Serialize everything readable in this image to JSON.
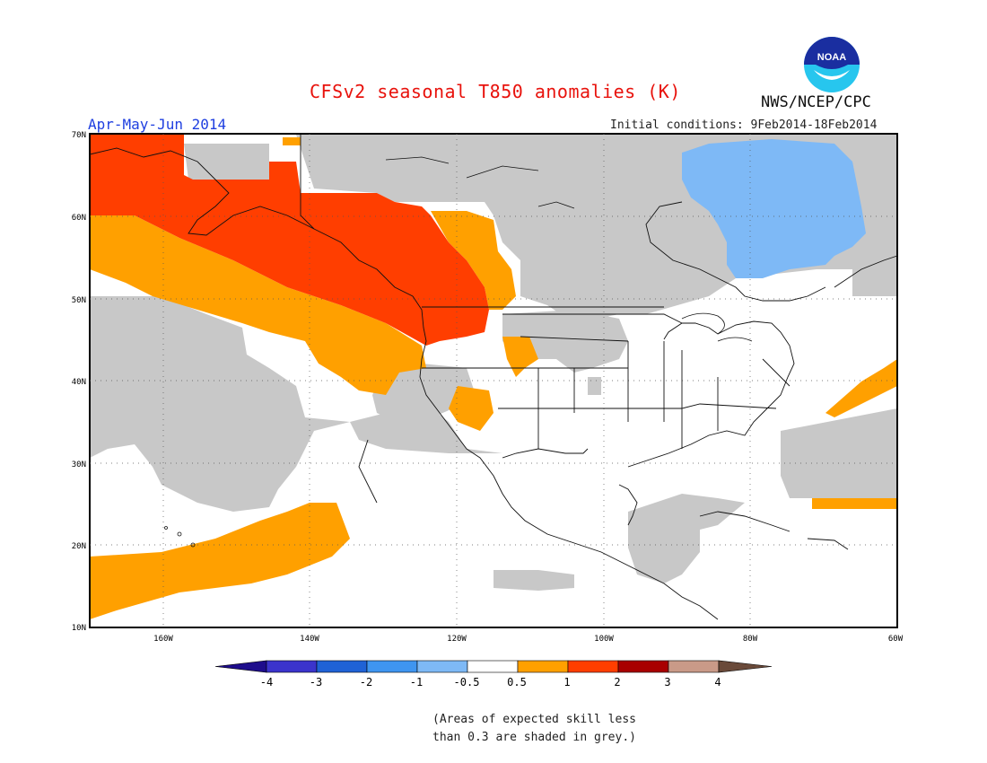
{
  "header": {
    "title": "CFSv2 seasonal T850 anomalies (K)",
    "org": "NWS/NCEP/CPC",
    "period": "Apr-May-Jun 2014",
    "initial_conditions": "Initial conditions: 9Feb2014-18Feb2014",
    "logo_text": "NOAA"
  },
  "map": {
    "lat_labels": [
      "70N",
      "60N",
      "50N",
      "40N",
      "30N",
      "20N",
      "10N"
    ],
    "lon_labels": [
      "160W",
      "140W",
      "120W",
      "100W",
      "80W",
      "60W"
    ]
  },
  "legend": {
    "labels": [
      "-4",
      "-3",
      "-2",
      "-1",
      "-0.5",
      "0.5",
      "1",
      "2",
      "3",
      "4"
    ],
    "colors": [
      "#1e0d8c",
      "#3b34cc",
      "#1f62d6",
      "#3f95f0",
      "#7eb9f6",
      "#ffffff",
      "#ffa000",
      "#ff3e00",
      "#a80000",
      "#c99a88",
      "#6a4a3a"
    ]
  },
  "note": {
    "line1": "(Areas of expected skill less",
    "line2": "than 0.3 are shaded in grey.)"
  },
  "colors": {
    "grey_shading": "#c8c8c8",
    "anom_05_1": "#ffa000",
    "anom_1_2": "#ff3e00",
    "anom_neg": "#7eb9f6"
  }
}
